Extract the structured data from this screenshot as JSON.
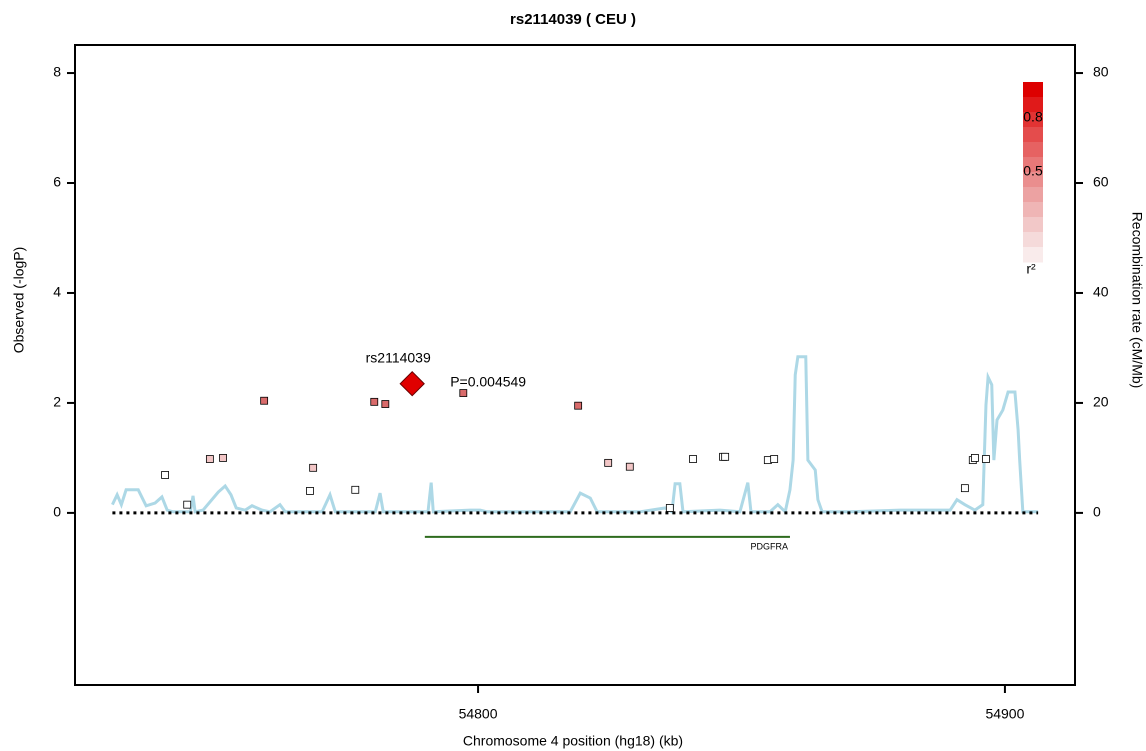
{
  "chart_data": {
    "type": "scatter",
    "title": "rs2114039 ( CEU )",
    "x_label": "Chromosome 4 position (hg18) (kb)",
    "y_label": "Observed (-logP)",
    "y2_label": "Recombination rate (cM/Mb)",
    "xlim": [
      54723.5,
      54913.3
    ],
    "xticks": [
      54800,
      54900
    ],
    "ylim": [
      -3.13,
      8.51
    ],
    "yticks": [
      0,
      2,
      4,
      6,
      8
    ],
    "y2lim": [
      -31.3,
      85.1
    ],
    "y2ticks": [
      0,
      20,
      40,
      60,
      80
    ],
    "x": [
      54740.6,
      54744.8,
      54749.1,
      54751.6,
      54759.4,
      54768.7,
      54768.1,
      54776.7,
      54780.3,
      54782.4,
      54797.2,
      54819.0,
      54824.7,
      54828.8,
      54836.4,
      54840.8,
      54846.5,
      54846.9,
      54855.0,
      54856.2,
      54892.4,
      54893.9,
      54894.3,
      54896.4
    ],
    "values": [
      0.69,
      0.15,
      0.98,
      1.0,
      2.04,
      0.82,
      0.4,
      0.42,
      2.02,
      1.98,
      2.18,
      1.95,
      0.91,
      0.84,
      0.09,
      0.98,
      1.02,
      1.02,
      0.96,
      0.98,
      0.45,
      0.96,
      1.0,
      0.98
    ],
    "point_colors": [
      "#ffffff",
      "#ffffff",
      "#f2c6c6",
      "#f2c6c6",
      "#d96b6b",
      "#f2c6c6",
      "#ffffff",
      "#ffffff",
      "#d96b6b",
      "#d96b6b",
      "#d96b6b",
      "#d96b6b",
      "#f2c6c6",
      "#f2c6c6",
      "#ffffff",
      "#ffffff",
      "#ffffff",
      "#ffffff",
      "#ffffff",
      "#ffffff",
      "#ffffff",
      "#ffffff",
      "#ffffff",
      "#ffffff"
    ],
    "lead": {
      "label": "rs2114039",
      "p_label": "P=0.004549",
      "x": 54787.5,
      "value": 2.35,
      "color": "#e00000"
    },
    "recombination": {
      "axis": "y2",
      "color": "#add8e6",
      "x": [
        54730.6,
        54731.5,
        54732.3,
        54733.2,
        54735.5,
        54737.0,
        54738.7,
        54740.0,
        54741.0,
        54742.1,
        54745.4,
        54745.9,
        54746.3,
        54747.8,
        54750.7,
        54752.0,
        54753.1,
        54754.1,
        54755.8,
        54757.1,
        54759.0,
        54760.5,
        54762.4,
        54763.4,
        54770.4,
        54771.9,
        54772.9,
        54780.5,
        54781.4,
        54782.0,
        54790.5,
        54791.1,
        54791.5,
        54798.5,
        54800.4,
        54801.7,
        54817.5,
        54819.4,
        54821.3,
        54822.6,
        54830.7,
        54835.5,
        54836.8,
        54837.4,
        54838.3,
        54838.9,
        54845.9,
        54849.7,
        54851.2,
        54851.8,
        54855.4,
        54856.9,
        54858.3,
        54859.2,
        54859.8,
        54860.2,
        54860.7,
        54862.2,
        54862.6,
        54864.0,
        54864.5,
        54865.3,
        54870.6,
        54880.1,
        54889.6,
        54890.9,
        54892.4,
        54894.3,
        54895.8,
        54896.4,
        54896.8,
        54897.5,
        54897.9,
        54898.5,
        54899.6,
        54900.6,
        54901.9,
        54902.5,
        54902.8,
        54903.4,
        54906.3
      ],
      "values": [
        1.5,
        3.3,
        1.5,
        4.2,
        4.2,
        1.3,
        1.8,
        2.9,
        0.5,
        0.2,
        0.2,
        3.1,
        0.2,
        0.5,
        3.8,
        4.9,
        3.3,
        0.9,
        0.5,
        1.3,
        0.5,
        0.2,
        1.5,
        0.2,
        0.2,
        3.3,
        0.2,
        0.2,
        3.6,
        0.2,
        0.2,
        5.5,
        0.2,
        0.5,
        0.5,
        0.2,
        0.2,
        3.6,
        2.7,
        0.2,
        0.2,
        0.9,
        0.2,
        5.3,
        5.3,
        0.2,
        0.5,
        0.2,
        5.5,
        0.2,
        0.2,
        1.5,
        0.2,
        4.2,
        9.6,
        25.1,
        28.4,
        28.4,
        9.6,
        7.8,
        2.4,
        0.2,
        0.2,
        0.5,
        0.5,
        2.4,
        1.5,
        0.5,
        1.5,
        19.6,
        24.7,
        23.3,
        9.6,
        16.9,
        18.7,
        22.0,
        22.0,
        15.1,
        9.6,
        0.2,
        0.2
      ]
    },
    "genes": [
      {
        "name": "PDGFRA",
        "start": 54789.9,
        "end": 54859.2,
        "color": "#2e6b1e"
      }
    ],
    "legend": {
      "colors": [
        "#dd0000",
        "#e01a1a",
        "#e23333",
        "#e44c4c",
        "#e66262",
        "#e87878",
        "#ea8e8e",
        "#eca2a2",
        "#efb5b5",
        "#f2c8c8",
        "#f5dada",
        "#f9ebeb"
      ],
      "range": [
        0,
        1
      ],
      "ticks": [
        0.8,
        0.5
      ],
      "label": "r²"
    }
  }
}
